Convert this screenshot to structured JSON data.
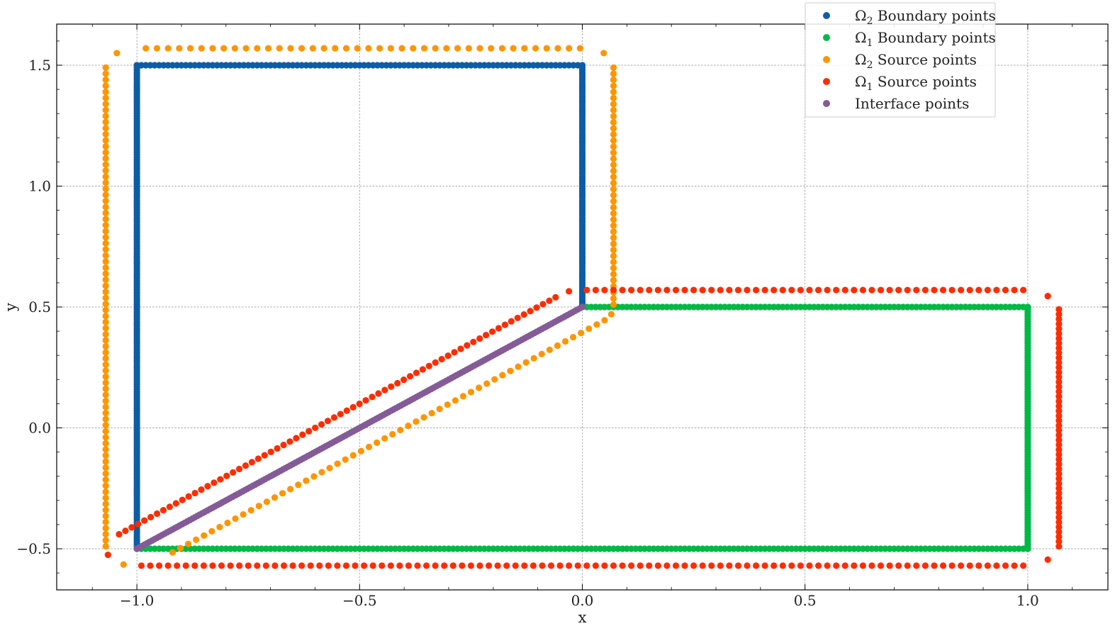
{
  "chart_data": {
    "type": "scatter",
    "xlabel": "x",
    "ylabel": "y",
    "xlim": [
      -1.18,
      1.18
    ],
    "ylim": [
      -0.67,
      1.67
    ],
    "x_ticks": [
      -1.0,
      -0.5,
      0.0,
      0.5,
      1.0
    ],
    "x_tick_labels": [
      "−1.0",
      "−0.5",
      "0.0",
      "0.5",
      "1.0"
    ],
    "y_ticks": [
      -0.5,
      0.0,
      0.5,
      1.0,
      1.5
    ],
    "y_tick_labels": [
      "−0.5",
      "0.0",
      "0.5",
      "1.0",
      "1.5"
    ],
    "grid": true,
    "legend_position": "top-right",
    "series": [
      {
        "name": "Ω₂ Boundary points",
        "color": "#0c5da5",
        "point_spacing": 0.01,
        "segments": [
          {
            "from": [
              -1.0,
              -0.5
            ],
            "to": [
              -1.0,
              1.5
            ]
          },
          {
            "from": [
              -1.0,
              1.5
            ],
            "to": [
              0.0,
              1.5
            ]
          },
          {
            "from": [
              0.0,
              1.5
            ],
            "to": [
              0.0,
              0.5
            ]
          }
        ]
      },
      {
        "name": "Ω₁ Boundary points",
        "color": "#00b945",
        "point_spacing": 0.01,
        "segments": [
          {
            "from": [
              0.0,
              0.5
            ],
            "to": [
              1.0,
              0.5
            ]
          },
          {
            "from": [
              1.0,
              0.5
            ],
            "to": [
              1.0,
              -0.5
            ]
          },
          {
            "from": [
              1.0,
              -0.5
            ],
            "to": [
              -1.0,
              -0.5
            ]
          }
        ]
      },
      {
        "name": "Ω₂ Source points",
        "color": "#ff9500",
        "point_spacing": 0.025,
        "segments": [
          {
            "from": [
              -1.07,
              -0.49
            ],
            "to": [
              -1.07,
              1.49
            ]
          },
          {
            "from": [
              -0.98,
              1.57
            ],
            "to": [
              -0.005,
              1.57
            ]
          },
          {
            "from": [
              0.07,
              1.49
            ],
            "to": [
              0.07,
              0.51
            ]
          },
          {
            "from": [
              0.05,
              0.445
            ],
            "to": [
              -0.92,
              -0.515
            ]
          }
        ],
        "points": [
          [
            -1.045,
            1.55
          ],
          [
            0.048,
            1.55
          ],
          [
            0.065,
            0.47
          ],
          [
            -1.03,
            -0.565
          ]
        ]
      },
      {
        "name": "Ω₁ Source points",
        "color": "#ff2c00",
        "point_spacing": 0.02,
        "segments": [
          {
            "from": [
              0.01,
              0.57
            ],
            "to": [
              0.99,
              0.57
            ]
          },
          {
            "from": [
              1.07,
              0.49
            ],
            "to": [
              1.07,
              -0.49
            ]
          },
          {
            "from": [
              0.99,
              -0.57
            ],
            "to": [
              -0.99,
              -0.57
            ]
          },
          {
            "from": [
              -1.04,
              -0.44
            ],
            "to": [
              -0.06,
              0.54
            ]
          }
        ],
        "points": [
          [
            -0.03,
            0.565
          ],
          [
            1.045,
            0.545
          ],
          [
            1.045,
            -0.545
          ],
          [
            -1.065,
            -0.525
          ]
        ]
      },
      {
        "name": "Interface points",
        "color": "#845b97",
        "point_spacing": 0.008,
        "segments": [
          {
            "from": [
              -1.0,
              -0.5
            ],
            "to": [
              0.0,
              0.5
            ]
          }
        ]
      }
    ]
  },
  "legend": {
    "items": [
      {
        "prefix": "Ω",
        "sub": "2",
        "text": " Boundary points",
        "color": "#0c5da5"
      },
      {
        "prefix": "Ω",
        "sub": "1",
        "text": " Boundary points",
        "color": "#00b945"
      },
      {
        "prefix": "Ω",
        "sub": "2",
        "text": " Source points",
        "color": "#ff9500"
      },
      {
        "prefix": "Ω",
        "sub": "1",
        "text": " Source points",
        "color": "#ff2c00"
      },
      {
        "prefix": "",
        "sub": "",
        "text": "Interface points",
        "color": "#845b97"
      }
    ]
  }
}
